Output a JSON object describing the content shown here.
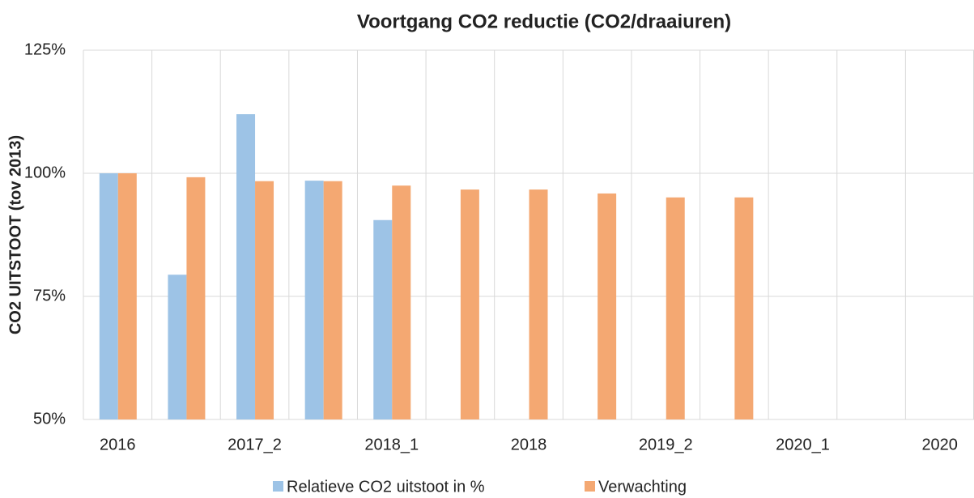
{
  "chart_data": {
    "type": "bar",
    "title": "Voortgang CO2 reductie (CO2/draaiuren)",
    "y_label": "CO2 UITSTOOT (tov 2013)",
    "categories": [
      "2016",
      null,
      "2017_2",
      null,
      "2018_1",
      null,
      "2018",
      null,
      "2019_2",
      null,
      "2020_1",
      null,
      "2020"
    ],
    "series": [
      {
        "name": "Relatieve CO2 uitstoot in %",
        "color": "#9dc3e6",
        "values": [
          100,
          79.4,
          112,
          98.5,
          90.5,
          null,
          null,
          null,
          null,
          null,
          null,
          null,
          null
        ]
      },
      {
        "name": "Verwachting",
        "color": "#f4a872",
        "values": [
          100,
          99.2,
          98.4,
          98.4,
          97.5,
          96.7,
          96.7,
          95.9,
          95.1,
          95.1,
          null,
          null,
          null
        ]
      }
    ],
    "ylim": [
      50,
      125
    ],
    "yticks": [
      {
        "value": 50,
        "label": "50%"
      },
      {
        "value": 75,
        "label": "75%"
      },
      {
        "value": 100,
        "label": "100%"
      },
      {
        "value": 125,
        "label": "125%"
      }
    ],
    "grid": true,
    "legend": "bottom"
  }
}
